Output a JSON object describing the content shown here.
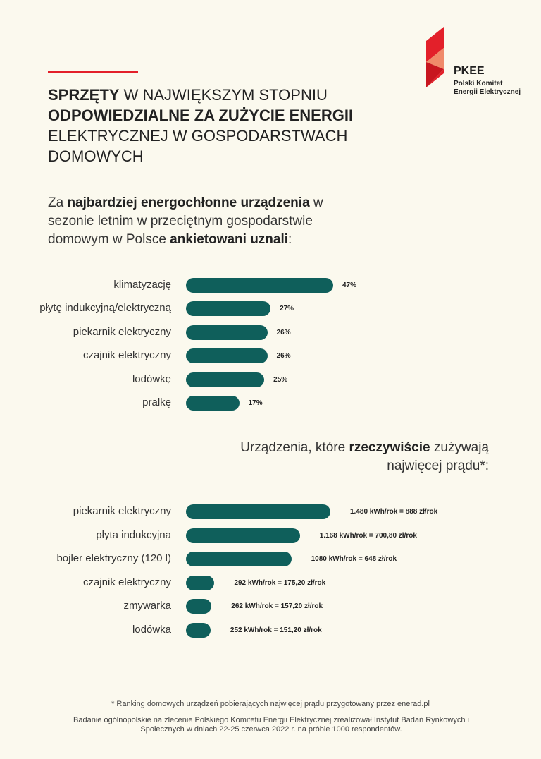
{
  "colors": {
    "accent": "#e3202a",
    "bar": "#0f5f5b",
    "background": "#fbf9ee"
  },
  "logo": {
    "brand": "PKEE",
    "line1": "Polski Komitet",
    "line2": "Energii Elektrycznej"
  },
  "headline": {
    "part1_bold": "SPRZĘTY",
    "part2": " W NAJWIĘKSZYM STOPNIU ",
    "part3_bold": "ODPOWIEDZIALNE ZA ZUŻYCIE ENERGII",
    "part4": " ELEKTRYCZNEJ W GOSPODARSTWACH DOMOWYCH"
  },
  "intro": {
    "p1": "Za ",
    "p2_bold": "najbardziej energochłonne urządzenia",
    "p3": " w sezonie letnim w przeciętnym gospodarstwie domowym w Polsce ",
    "p4_bold": "ankietowani uznali",
    "p5": ":"
  },
  "subhead": {
    "p1": "Urządzenia, które ",
    "p2_bold": "rzeczywiście",
    "p3": " zużywają najwięcej prądu*:"
  },
  "chart_data": [
    {
      "type": "bar",
      "orientation": "horizontal",
      "title": "Za najbardziej energochłonne urządzenia w sezonie letnim w przeciętnym gospodarstwie domowym w Polsce ankietowani uznali:",
      "categories": [
        "klimatyzację",
        "płytę indukcyjną/elektryczną",
        "piekarnik elektryczny",
        "czajnik elektryczny",
        "lodówkę",
        "pralkę"
      ],
      "values": [
        47,
        27,
        26,
        26,
        25,
        17
      ],
      "value_labels": [
        "47%",
        "27%",
        "26%",
        "26%",
        "25%",
        "17%"
      ],
      "unit": "%",
      "xlim": [
        0,
        47
      ]
    },
    {
      "type": "bar",
      "orientation": "horizontal",
      "title": "Urządzenia, które rzeczywiście zużywają najwięcej prądu*:",
      "categories": [
        "piekarnik elektryczny",
        "płyta indukcyjna",
        "bojler elektryczny (120 l)",
        "czajnik elektryczny",
        "zmywarka",
        "lodówka"
      ],
      "values": [
        1480,
        1168,
        1080,
        292,
        262,
        252
      ],
      "value_labels": [
        "1.480 kWh/rok = 888 zł/rok",
        "1.168 kWh/rok = 700,80 zł/rok",
        "1080 kWh/rok = 648 zł/rok",
        "292 kWh/rok = 175,20 zł/rok",
        "262 kWh/rok = 157,20 zł/rok",
        "252 kWh/rok = 151,20 zł/rok"
      ],
      "unit": "kWh/rok",
      "xlim": [
        0,
        1480
      ]
    }
  ],
  "footnote": "* Ranking domowych urządzeń pobierających najwięcej prądu przygotowany przez enerad.pl",
  "source": "Badanie ogólnopolskie na zlecenie Polskiego Komitetu Energii Elektrycznej zrealizował Instytut Badań Rynkowych i Społecznych w dniach 22-25 czerwca 2022 r. na próbie 1000 respondentów."
}
